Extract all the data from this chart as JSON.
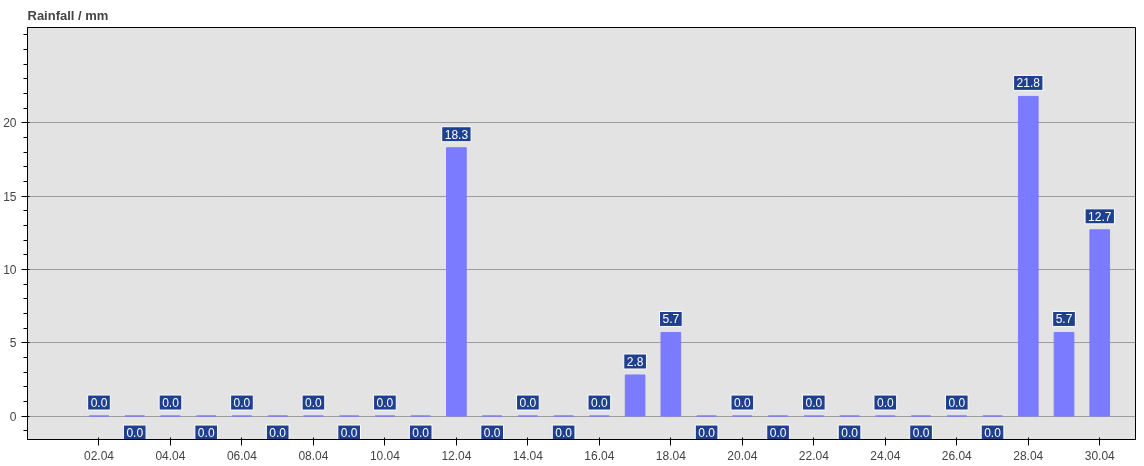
{
  "chart_data": {
    "type": "bar",
    "title": "Rainfall / mm",
    "categories": [
      "02.04",
      null,
      "04.04",
      null,
      "06.04",
      null,
      "08.04",
      null,
      "10.04",
      null,
      "12.04",
      null,
      "14.04",
      null,
      "16.04",
      null,
      "18.04",
      null,
      "20.04",
      null,
      "22.04",
      null,
      "24.04",
      null,
      "26.04",
      null,
      "28.04",
      null,
      "30.04"
    ],
    "values": [
      0,
      0,
      0,
      0,
      0,
      0,
      0,
      0,
      0,
      0,
      18.3,
      0,
      0,
      0,
      0,
      2.8,
      5.7,
      0,
      0,
      0,
      0,
      0,
      0,
      0,
      0,
      0,
      21.8,
      5.7,
      12.7
    ],
    "value_labels": [
      "0.0",
      "0.0",
      "0.0",
      "0.0",
      "0.0",
      "0.0",
      "0.0",
      "0.0",
      "0.0",
      "0.0",
      "18.3",
      "0.0",
      "0.0",
      "0.0",
      "0.0",
      "2.8",
      "5.7",
      "0.0",
      "0.0",
      "0.0",
      "0.0",
      "0.0",
      "0.0",
      "0.0",
      "0.0",
      "0.0",
      "21.8",
      "5.7",
      "12.7"
    ],
    "color": "#7b7bff",
    "ylim": [
      -1.6,
      26.5
    ],
    "yticks": [
      0,
      5,
      10,
      15,
      20
    ],
    "grid": "y"
  }
}
